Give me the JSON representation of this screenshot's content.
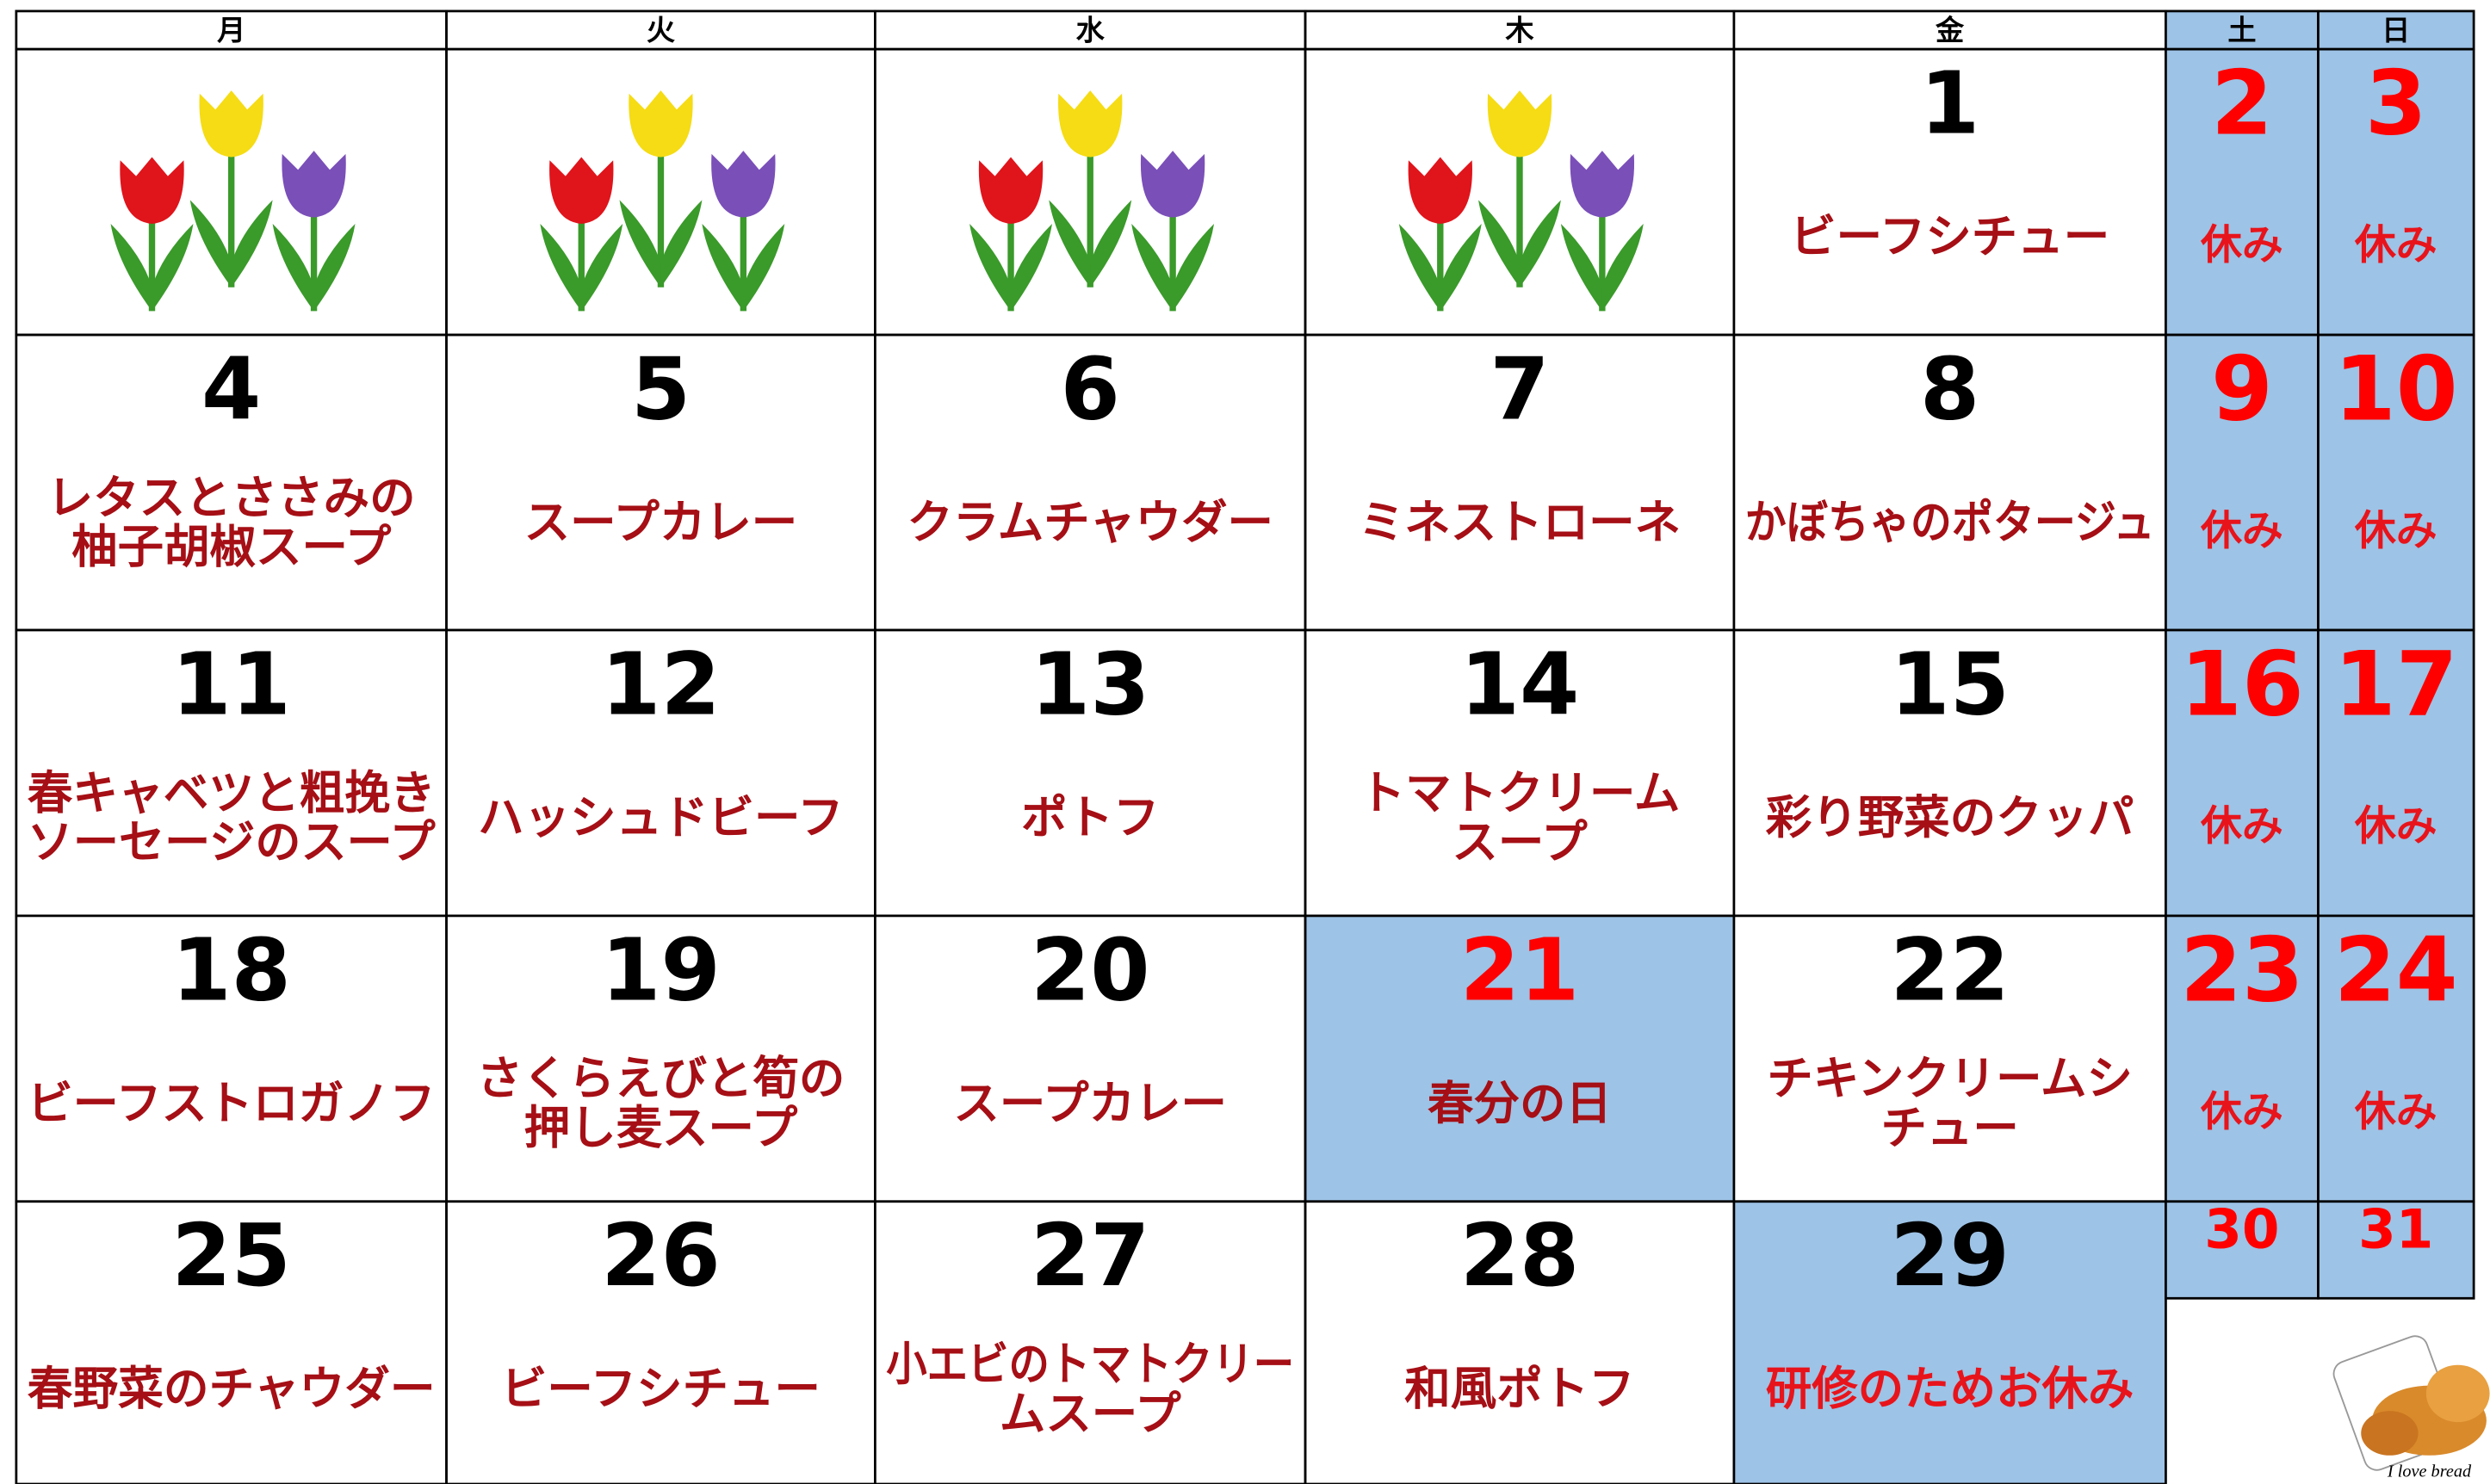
{
  "calendar": {
    "header_days": [
      "月",
      "火",
      "水",
      "木",
      "金",
      "土",
      "日"
    ],
    "weeks": [
      [
        null,
        null,
        null,
        null,
        {
          "day": 1,
          "menu": [
            "ビーフシチュー"
          ]
        },
        {
          "day": 2,
          "menu": [
            "休み"
          ],
          "shaded": true,
          "number_color": "#ff0000",
          "menu_color": "#e8141b"
        },
        {
          "day": 3,
          "menu": [
            "休み"
          ],
          "shaded": true,
          "number_color": "#ff0000",
          "menu_color": "#e8141b"
        }
      ],
      [
        {
          "day": 4,
          "menu": [
            "レタスとささみの",
            "柚子胡椒スープ"
          ]
        },
        {
          "day": 5,
          "menu": [
            "スープカレー"
          ]
        },
        {
          "day": 6,
          "menu": [
            "クラムチャウダー"
          ]
        },
        {
          "day": 7,
          "menu": [
            "ミネストローネ"
          ]
        },
        {
          "day": 8,
          "menu": [
            "かぼちゃのポタージュ"
          ]
        },
        {
          "day": 9,
          "menu": [
            "休み"
          ],
          "shaded": true,
          "number_color": "#ff0000",
          "menu_color": "#e8141b"
        },
        {
          "day": 10,
          "menu": [
            "休み"
          ],
          "shaded": true,
          "number_color": "#ff0000",
          "menu_color": "#e8141b"
        }
      ],
      [
        {
          "day": 11,
          "menu": [
            "春キャベツと粗挽き",
            "ソーセージのスープ"
          ]
        },
        {
          "day": 12,
          "menu": [
            "ハッシュドビーフ"
          ]
        },
        {
          "day": 13,
          "menu": [
            "ポトフ"
          ]
        },
        {
          "day": 14,
          "menu": [
            "トマトクリーム",
            "スープ"
          ]
        },
        {
          "day": 15,
          "menu": [
            "彩り野菜のクッパ"
          ]
        },
        {
          "day": 16,
          "menu": [
            "休み"
          ],
          "shaded": true,
          "number_color": "#ff0000",
          "menu_color": "#e8141b"
        },
        {
          "day": 17,
          "menu": [
            "休み"
          ],
          "shaded": true,
          "number_color": "#ff0000",
          "menu_color": "#e8141b"
        }
      ],
      [
        {
          "day": 18,
          "menu": [
            "ビーフストロガノフ"
          ]
        },
        {
          "day": 19,
          "menu": [
            "さくらえびと筍の",
            "押し麦スープ"
          ]
        },
        {
          "day": 20,
          "menu": [
            "スープカレー"
          ]
        },
        {
          "day": 21,
          "menu": [
            "春分の日"
          ],
          "shaded": true,
          "number_color": "#ff0000"
        },
        {
          "day": 22,
          "menu": [
            "チキンクリームシ",
            "チュー"
          ]
        },
        {
          "day": 23,
          "menu": [
            "休み"
          ],
          "shaded": true,
          "number_color": "#ff0000",
          "menu_color": "#e8141b"
        },
        {
          "day": 24,
          "menu": [
            "休み"
          ],
          "shaded": true,
          "number_color": "#ff0000",
          "menu_color": "#e8141b"
        }
      ],
      [
        {
          "day": 25,
          "menu": [
            "春野菜のチャウダー"
          ]
        },
        {
          "day": 26,
          "menu": [
            "ビーフシチュー"
          ]
        },
        {
          "day": 27,
          "menu": [
            "小エビのトマトクリー",
            "ムスープ"
          ]
        },
        {
          "day": 28,
          "menu": [
            "和風ポトフ"
          ]
        },
        {
          "day": 29,
          "menu": [
            "研修のためお休み"
          ],
          "shaded": true,
          "menu_color": "#e8141b"
        },
        {
          "day": 30,
          "shaded": true,
          "number_color": "#ff0000"
        },
        {
          "day": 31,
          "shaded": true,
          "number_color": "#ff0000"
        }
      ]
    ],
    "decoration_caption": "I love bread"
  }
}
